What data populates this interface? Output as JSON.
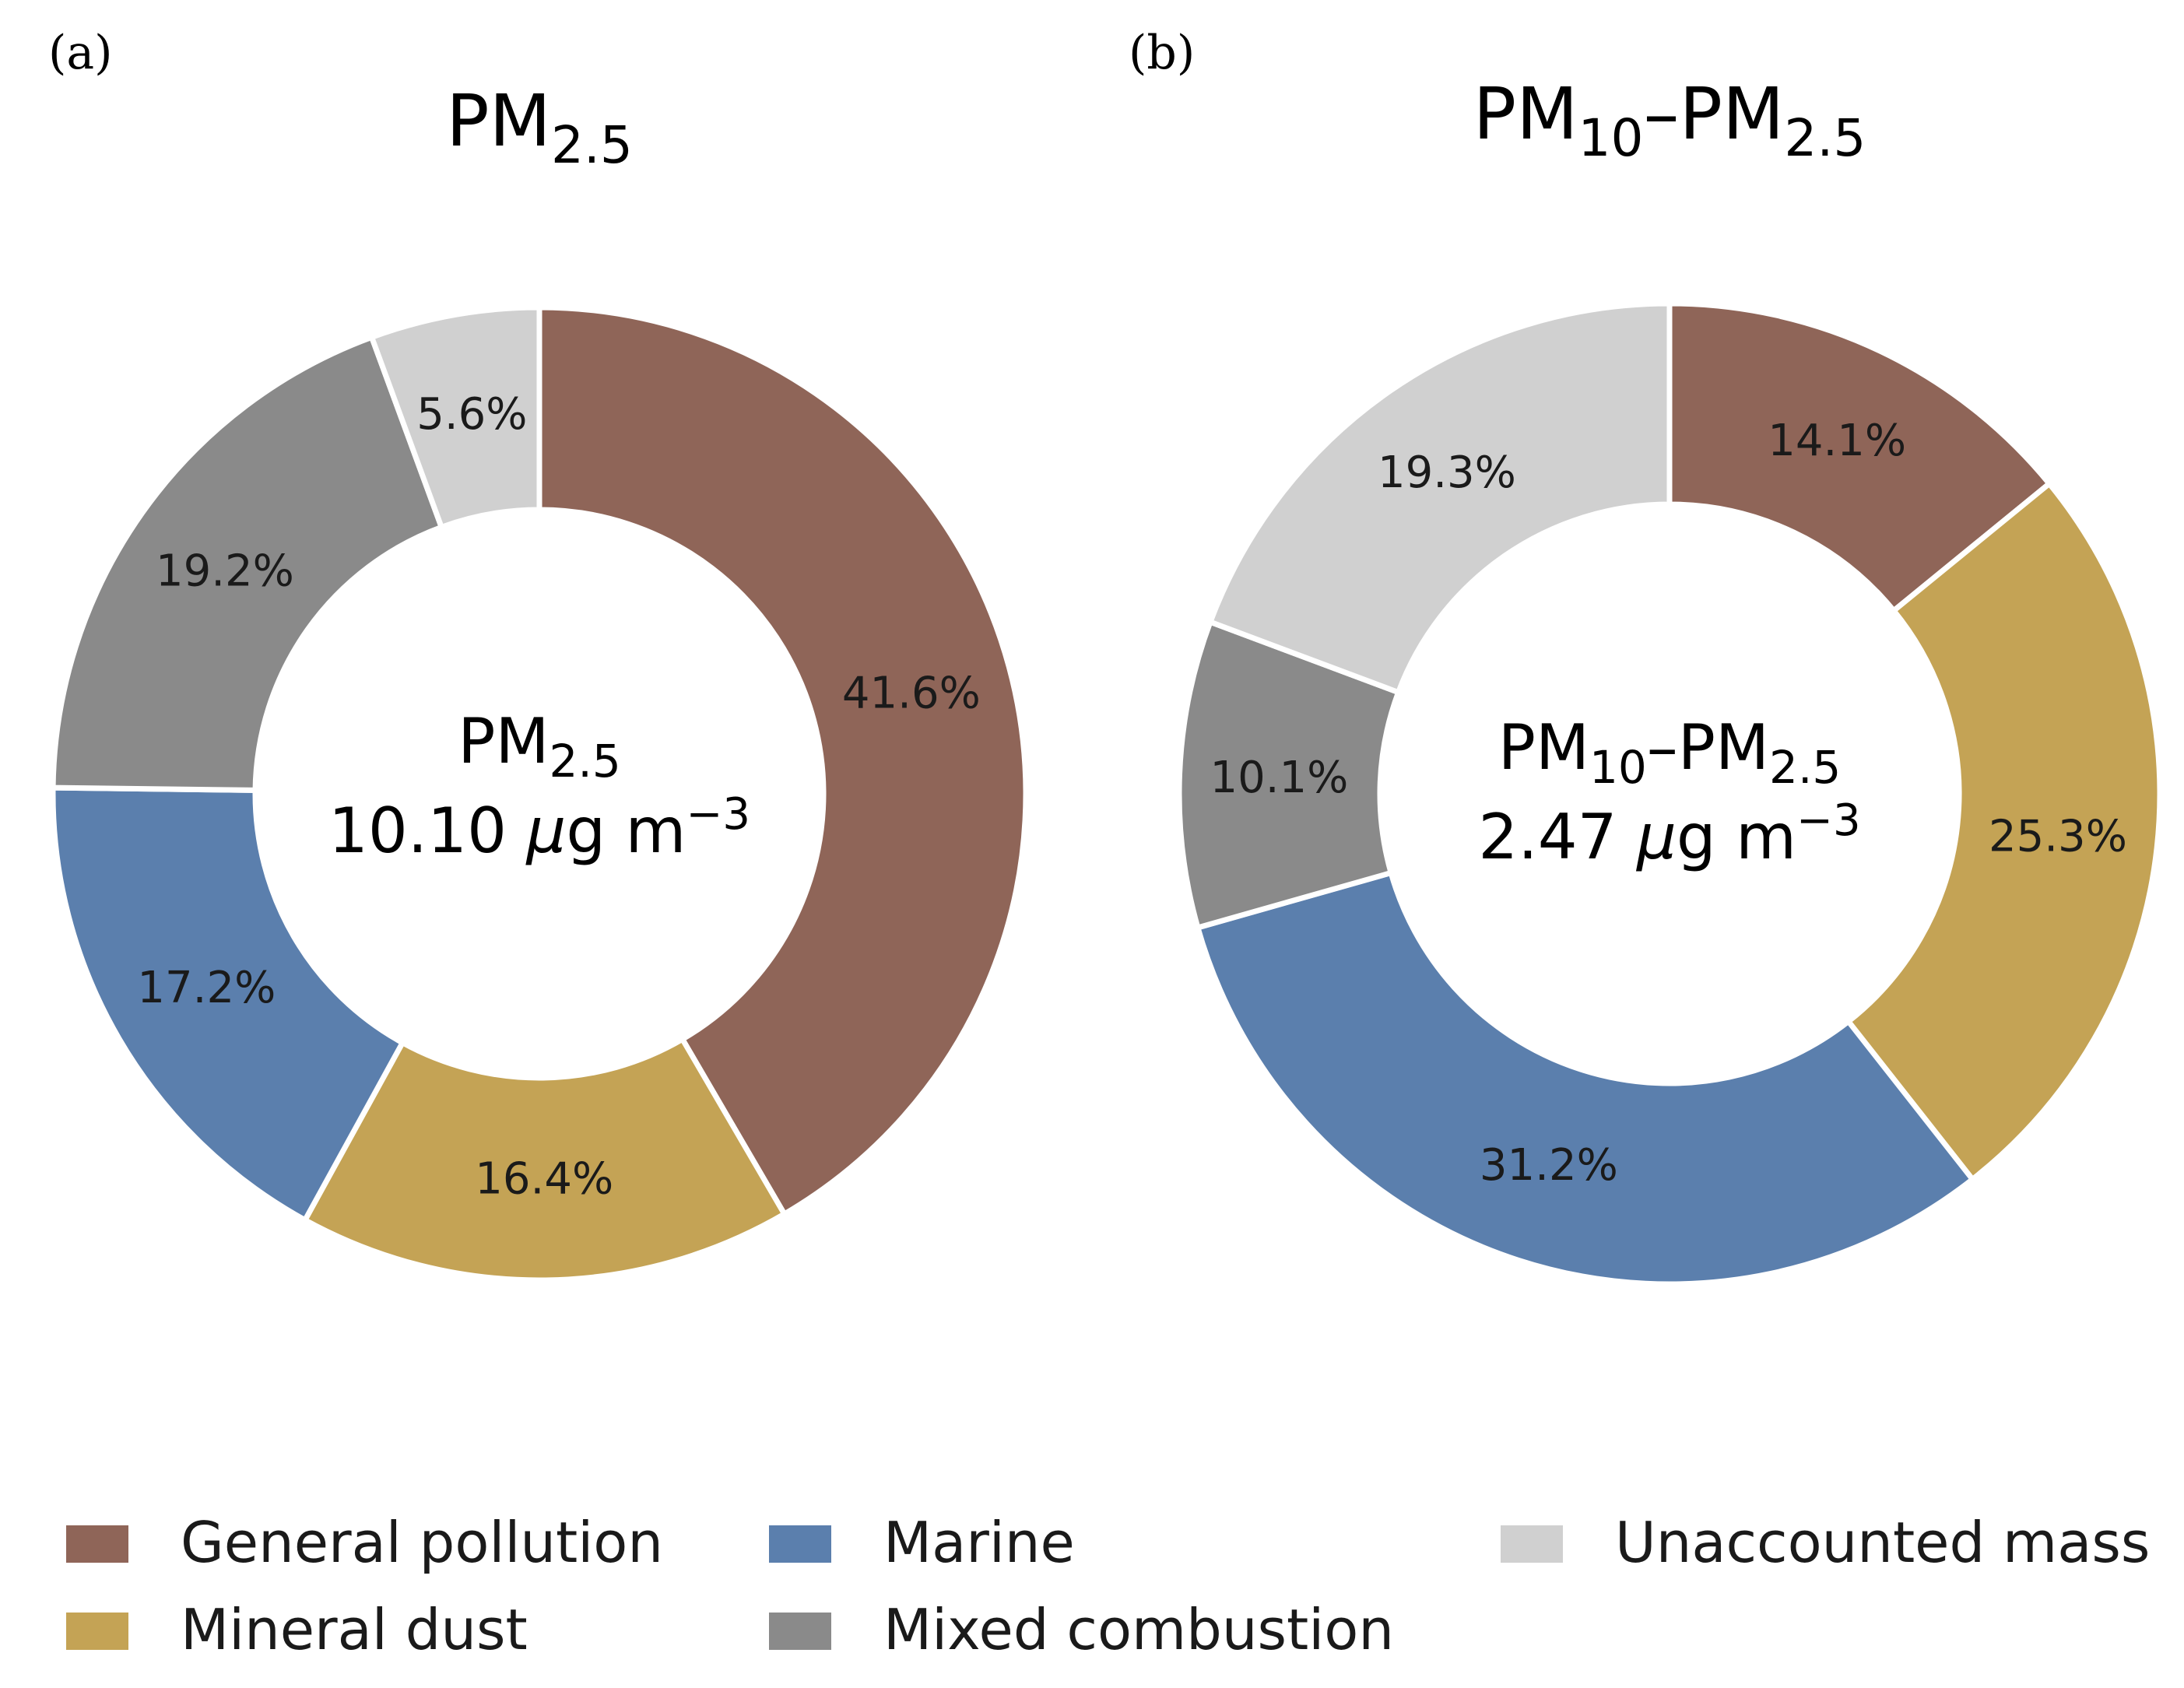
{
  "panels": [
    {
      "label": "(a)",
      "title": {
        "main": "PM",
        "sub": "2.5"
      },
      "center": {
        "main": "PM",
        "sub": "2.5",
        "value": "10.10",
        "unit_mu": "μ",
        "unit_rest": "g m",
        "unit_exp": "−3"
      }
    },
    {
      "label": "(b)",
      "title": {
        "main1": "PM",
        "sub1": "10",
        "dash": "–PM",
        "sub2": "2.5"
      },
      "center": {
        "main1": "PM",
        "sub1": "10",
        "dash": "–PM",
        "sub2": "2.5",
        "value": "2.47",
        "unit_mu": "μ",
        "unit_rest": "g m",
        "unit_exp": "−3"
      }
    }
  ],
  "legend": [
    {
      "label": "General pollution",
      "color": "#8f6558"
    },
    {
      "label": "Mineral dust",
      "color": "#c4a355"
    },
    {
      "label": "Marine",
      "color": "#5b7fad"
    },
    {
      "label": "Mixed combustion",
      "color": "#8a8a8a"
    },
    {
      "label": "Unaccounted mass",
      "color": "#d0d0d0"
    }
  ],
  "chart_data": [
    {
      "type": "pie",
      "donut": true,
      "start": "top, clockwise",
      "categories": [
        "General pollution",
        "Mineral dust",
        "Marine",
        "Mixed combustion",
        "Unaccounted mass"
      ],
      "values": [
        41.6,
        16.4,
        17.2,
        19.2,
        5.6
      ],
      "labels": [
        "41.6%",
        "16.4%",
        "17.2%",
        "19.2%",
        "5.6%"
      ]
    },
    {
      "type": "pie",
      "donut": true,
      "start": "top, clockwise",
      "categories": [
        "General pollution",
        "Mineral dust",
        "Marine",
        "Mixed combustion",
        "Unaccounted mass"
      ],
      "values": [
        14.1,
        25.3,
        31.2,
        10.1,
        19.3
      ],
      "labels": [
        "14.1%",
        "25.3%",
        "31.2%",
        "10.1%",
        "19.3%"
      ]
    }
  ]
}
